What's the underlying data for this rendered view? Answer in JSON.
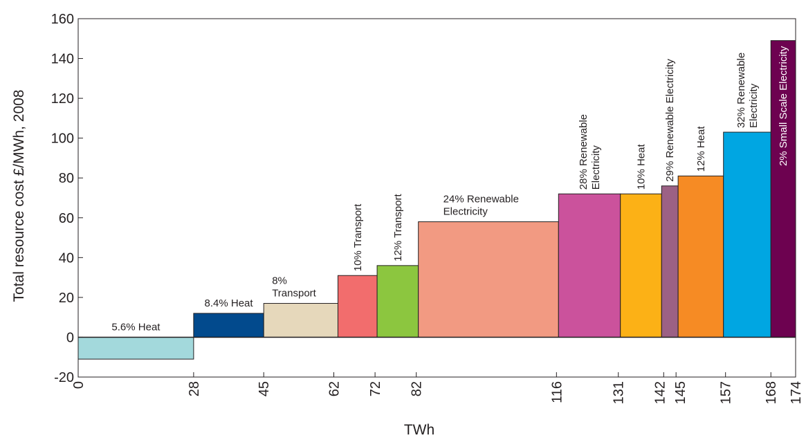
{
  "chart_data": {
    "type": "bar",
    "title": "",
    "xlabel": "TWh",
    "ylabel": "Total resource cost £/MWh, 2008",
    "xlim": [
      0,
      174
    ],
    "ylim": [
      -20,
      160
    ],
    "y_ticks": [
      -20,
      0,
      20,
      40,
      60,
      80,
      100,
      120,
      140,
      160
    ],
    "x_ticks": [
      0,
      28,
      45,
      62,
      72,
      82,
      116,
      131,
      142,
      145,
      157,
      168,
      174
    ],
    "grid": false,
    "legend": "none",
    "bars": [
      {
        "label": "5.6% Heat",
        "x_start": 0,
        "x_end": 28,
        "value": -11,
        "color": "#a3d9dc",
        "label_mode": "above"
      },
      {
        "label": "8.4% Heat",
        "x_start": 28,
        "x_end": 45,
        "value": 12,
        "color": "#024a8d",
        "label_mode": "above"
      },
      {
        "label": "8% Transport",
        "x_start": 45,
        "x_end": 63,
        "value": 17,
        "color": "#e6d8bb",
        "label_mode": "above"
      },
      {
        "label": "10% Transport",
        "x_start": 63,
        "x_end": 72.5,
        "value": 31,
        "color": "#f26d6d",
        "label_mode": "vertical"
      },
      {
        "label": "12% Transport",
        "x_start": 72.5,
        "x_end": 82.5,
        "value": 36,
        "color": "#8cc63f",
        "label_mode": "vertical"
      },
      {
        "label": "24% Renewable Electricity",
        "x_start": 82.5,
        "x_end": 116.5,
        "value": 58,
        "color": "#f29a82",
        "label_mode": "above"
      },
      {
        "label": "28% Renewable Electricity",
        "x_start": 116.5,
        "x_end": 131.5,
        "value": 72,
        "color": "#cb529c",
        "label_mode": "vertical"
      },
      {
        "label": "10% Heat",
        "x_start": 131.5,
        "x_end": 141.5,
        "value": 72,
        "color": "#fcb116",
        "label_mode": "vertical"
      },
      {
        "label": "29% Renewable Electricity",
        "x_start": 141.5,
        "x_end": 145.5,
        "value": 76,
        "color": "#9c6185",
        "label_mode": "vertical"
      },
      {
        "label": "12% Heat",
        "x_start": 145.5,
        "x_end": 156.5,
        "value": 81,
        "color": "#f68b24",
        "label_mode": "vertical"
      },
      {
        "label": "32% Renewable Electricity",
        "x_start": 156.5,
        "x_end": 168,
        "value": 103,
        "color": "#00a6e2",
        "label_mode": "vertical"
      },
      {
        "label": "2% Small Scale Electricity",
        "x_start": 168,
        "x_end": 174,
        "value": 149,
        "color": "#6d0250",
        "label_mode": "inside-vertical"
      }
    ],
    "annotations": {
      "label_lines": {
        "5.6% Heat": [
          "5.6% Heat"
        ],
        "8.4% Heat": [
          "8.4% Heat"
        ],
        "8% Transport": [
          "8%",
          "Transport"
        ],
        "10% Transport": [
          "10% Transport"
        ],
        "12% Transport": [
          "12% Transport"
        ],
        "24% Renewable Electricity": [
          "24% Renewable",
          "Electricity"
        ],
        "28% Renewable Electricity": [
          "28% Renewable",
          "Electricity"
        ],
        "10% Heat": [
          "10% Heat"
        ],
        "29% Renewable Electricity": [
          "29%  Renewable Electricity"
        ],
        "12% Heat": [
          "12% Heat"
        ],
        "32% Renewable Electricity": [
          "32% Renewable",
          "Electricity"
        ],
        "2% Small Scale Electricity": [
          "2% Small Scale Electricity"
        ]
      }
    }
  }
}
